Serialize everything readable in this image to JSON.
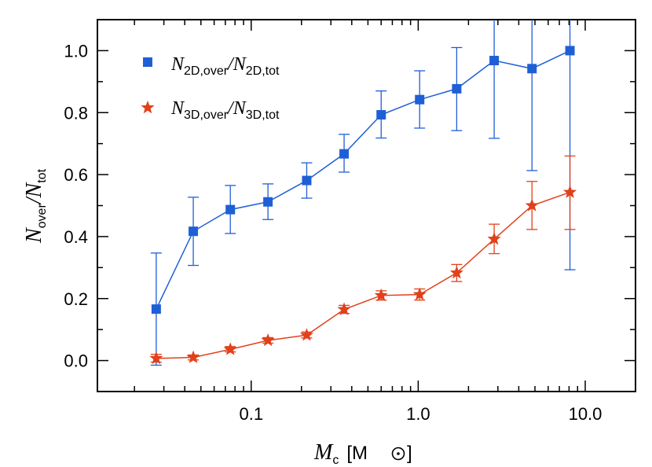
{
  "chart_data": {
    "type": "scatter",
    "x_scale": "log",
    "xlim": [
      0.012,
      20
    ],
    "ylim": [
      -0.1,
      1.1
    ],
    "grid": false,
    "legend_position": "top-left",
    "xlabel": {
      "main": "M",
      "sub": "c",
      "unit_open": "[M",
      "unit_close": "]"
    },
    "ylabel": {
      "num": "N",
      "num_sub": "over",
      "den": "N",
      "den_sub": "tot"
    },
    "x_ticks": [
      {
        "value": 0.1,
        "label": "0.1"
      },
      {
        "value": 1.0,
        "label": "1.0"
      },
      {
        "value": 10.0,
        "label": "10.0"
      }
    ],
    "y_ticks": [
      {
        "value": 0.0,
        "label": "0.0"
      },
      {
        "value": 0.2,
        "label": "0.2"
      },
      {
        "value": 0.4,
        "label": "0.4"
      },
      {
        "value": 0.6,
        "label": "0.6"
      },
      {
        "value": 0.8,
        "label": "0.8"
      },
      {
        "value": 1.0,
        "label": "1.0"
      }
    ],
    "x": [
      0.027,
      0.045,
      0.075,
      0.126,
      0.215,
      0.36,
      0.6,
      1.02,
      1.7,
      2.85,
      4.8,
      8.1
    ],
    "series": [
      {
        "legend": {
          "a": "N",
          "a_sub": "2D,over",
          "b": "N",
          "b_sub": "2D,tot"
        },
        "marker": "square",
        "color": "#1f5fd6",
        "values": [
          0.166,
          0.417,
          0.487,
          0.512,
          0.581,
          0.667,
          0.793,
          0.842,
          0.877,
          0.968,
          0.942,
          1.0
        ],
        "err_low": [
          -0.015,
          0.307,
          0.41,
          0.455,
          0.524,
          0.608,
          0.718,
          0.75,
          0.742,
          0.717,
          0.613,
          0.293
        ],
        "err_high": [
          0.347,
          0.527,
          0.565,
          0.57,
          0.638,
          0.73,
          0.87,
          0.935,
          1.01,
          1.12,
          1.12,
          1.12
        ]
      },
      {
        "legend": {
          "a": "N",
          "a_sub": "3D,over",
          "b": "N",
          "b_sub": "3D,tot"
        },
        "marker": "star",
        "color": "#e2401a",
        "values": [
          0.007,
          0.01,
          0.036,
          0.065,
          0.082,
          0.165,
          0.21,
          0.213,
          0.283,
          0.392,
          0.5,
          0.543
        ],
        "err_low": [
          -0.005,
          0.002,
          0.028,
          0.056,
          0.073,
          0.152,
          0.195,
          0.195,
          0.255,
          0.345,
          0.423,
          0.423
        ],
        "err_high": [
          0.02,
          0.018,
          0.045,
          0.074,
          0.092,
          0.178,
          0.225,
          0.231,
          0.31,
          0.44,
          0.578,
          0.66
        ]
      }
    ]
  }
}
